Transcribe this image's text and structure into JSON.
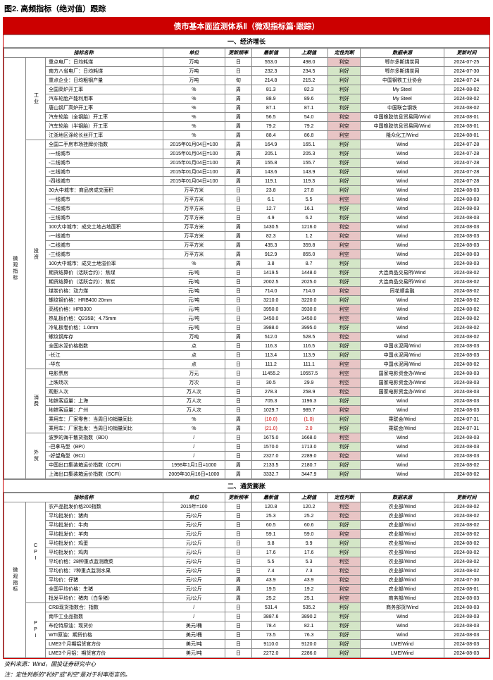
{
  "figTitle": "图2. 高频指标（绝对值）跟踪",
  "mainTitle": "债市基本面监测体系Ⅱ（微观指标篇·跟踪）",
  "s1": "一、经济增长",
  "s2": "二、通货膨胀",
  "hdr": {
    "name": "指标名称",
    "unit": "单位",
    "freq": "更新频率",
    "v1": "最新值",
    "v2": "上期值",
    "judge": "定性判断",
    "src": "数据来源",
    "date": "更新时间"
  },
  "footnote1": "资料来源：Wind，国投证券研究中心",
  "footnote2": "注：定性判断的\"利好\"或\"利空\"是对于利率而言的。",
  "catMicro": "微观指标",
  "grp1": [
    {
      "cat": "工业",
      "rows": [
        {
          "n": "重点电厂：日均耗煤",
          "u": "万吨",
          "f": "日",
          "v1": "553.0",
          "v2": "498.0",
          "j": "利空",
          "jc": "lk2",
          "s": "鄂尔多斯煤炭网",
          "d": "2024-07-25"
        },
        {
          "n": "南方八省电厂：日均耗煤",
          "u": "万吨",
          "f": "日",
          "v1": "232.3",
          "v2": "234.5",
          "j": "利好",
          "jc": "lk",
          "s": "鄂尔多斯煤炭网",
          "d": "2024-07-30"
        },
        {
          "n": "重点企业：日均粗钢产量",
          "u": "万吨",
          "f": "旬",
          "v1": "214.8",
          "v2": "215.2",
          "j": "利好",
          "jc": "lk",
          "s": "中国钢铁工业协会",
          "d": "2024-07-24"
        },
        {
          "n": "全国高炉开工率",
          "u": "%",
          "f": "周",
          "v1": "81.3",
          "v2": "82.3",
          "j": "利好",
          "jc": "lk",
          "s": "My Steel",
          "d": "2024-08-02"
        },
        {
          "n": "汽车轮胎产能利用率",
          "u": "%",
          "f": "周",
          "v1": "88.9",
          "v2": "89.6",
          "j": "利好",
          "jc": "lk",
          "s": "My Steel",
          "d": "2024-08-02"
        },
        {
          "n": "唐山钢厂高炉开工率",
          "u": "%",
          "f": "周",
          "v1": "87.1",
          "v2": "87.1",
          "j": "利好",
          "jc": "lk",
          "s": "中国联合钢铁",
          "d": "2024-08-02"
        },
        {
          "n": "汽车轮胎（全钢胎）开工率",
          "u": "%",
          "f": "周",
          "v1": "56.5",
          "v2": "54.0",
          "j": "利空",
          "jc": "lk2",
          "s": "中国橡胶信息贸易网/Wind",
          "d": "2024-08-01"
        },
        {
          "n": "汽车轮胎（半钢胎）开工率",
          "u": "%",
          "f": "周",
          "v1": "79.2",
          "v2": "79.2",
          "j": "利空",
          "jc": "lk2",
          "s": "中国橡胶信息贸易网/Wind",
          "d": "2024-08-01"
        },
        {
          "n": "江浙地区涤纶长丝开工率",
          "u": "%",
          "f": "周",
          "v1": "88.4",
          "v2": "86.8",
          "j": "利空",
          "jc": "lk2",
          "s": "隆众化工/Wind",
          "d": "2024-08-01"
        }
      ]
    },
    {
      "cat": "投资",
      "rows": [
        {
          "n": "全国二手房市场挂牌价指数",
          "u": "2015年01月04日=100",
          "f": "周",
          "v1": "164.9",
          "v2": "165.1",
          "j": "利好",
          "jc": "lk",
          "s": "Wind",
          "d": "2024-07-28"
        },
        {
          "n": "  ◦一线城市",
          "u": "2015年01月04日=100",
          "f": "周",
          "v1": "205.1",
          "v2": "205.3",
          "j": "利好",
          "jc": "lk",
          "s": "Wind",
          "d": "2024-07-28"
        },
        {
          "n": "  ◦二线城市",
          "u": "2015年01月04日=100",
          "f": "周",
          "v1": "155.8",
          "v2": "155.7",
          "j": "利好",
          "jc": "lk",
          "s": "Wind",
          "d": "2024-07-28"
        },
        {
          "n": "  ◦三线城市",
          "u": "2015年01月04日=100",
          "f": "周",
          "v1": "143.6",
          "v2": "143.9",
          "j": "利好",
          "jc": "lk",
          "s": "Wind",
          "d": "2024-07-28"
        },
        {
          "n": "  ◦四线城市",
          "u": "2015年01月04日=100",
          "f": "周",
          "v1": "119.1",
          "v2": "119.3",
          "j": "利好",
          "jc": "lk",
          "s": "Wind",
          "d": "2024-07-28"
        },
        {
          "n": "30大中城市：商品房成交面积",
          "u": "万平方米",
          "f": "日",
          "v1": "23.8",
          "v2": "27.8",
          "j": "利好",
          "jc": "lk",
          "s": "Wind",
          "d": "2024-08-03"
        },
        {
          "n": "  ◦一线城市",
          "u": "万平方米",
          "f": "日",
          "v1": "6.1",
          "v2": "5.5",
          "j": "利空",
          "jc": "lk2",
          "s": "Wind",
          "d": "2024-08-03"
        },
        {
          "n": "  ◦二线城市",
          "u": "万平方米",
          "f": "日",
          "v1": "12.7",
          "v2": "16.1",
          "j": "利好",
          "jc": "lk",
          "s": "Wind",
          "d": "2024-08-03"
        },
        {
          "n": "  ◦三线城市",
          "u": "万平方米",
          "f": "日",
          "v1": "4.9",
          "v2": "6.2",
          "j": "利好",
          "jc": "lk",
          "s": "Wind",
          "d": "2024-08-03"
        },
        {
          "n": "100大中城市：成交土地占地面积",
          "u": "万平方米",
          "f": "周",
          "v1": "1430.5",
          "v2": "1216.0",
          "j": "利空",
          "jc": "lk2",
          "s": "Wind",
          "d": "2024-08-03"
        },
        {
          "n": "  ◦一线城市",
          "u": "万平方米",
          "f": "周",
          "v1": "82.3",
          "v2": "1.2",
          "j": "利空",
          "jc": "lk2",
          "s": "Wind",
          "d": "2024-08-03"
        },
        {
          "n": "  ◦二线城市",
          "u": "万平方米",
          "f": "周",
          "v1": "435.3",
          "v2": "359.8",
          "j": "利空",
          "jc": "lk2",
          "s": "Wind",
          "d": "2024-08-03"
        },
        {
          "n": "  ◦三线城市",
          "u": "万平方米",
          "f": "周",
          "v1": "912.9",
          "v2": "855.0",
          "j": "利空",
          "jc": "lk2",
          "s": "Wind",
          "d": "2024-08-03"
        },
        {
          "n": "100大中城市：成交土地溢价率",
          "u": "%",
          "f": "周",
          "v1": "3.8",
          "v2": "8.7",
          "j": "利好",
          "jc": "lk",
          "s": "Wind",
          "d": "2024-08-03"
        },
        {
          "n": "期货结算价（活跃合约）：焦煤",
          "u": "元/吨",
          "f": "日",
          "v1": "1419.5",
          "v2": "1448.0",
          "j": "利好",
          "jc": "lk",
          "s": "大连商品交易所/Wind",
          "d": "2024-08-02"
        },
        {
          "n": "期货结算价（活跃合约）：焦炭",
          "u": "元/吨",
          "f": "日",
          "v1": "2002.5",
          "v2": "2025.0",
          "j": "利好",
          "jc": "lk",
          "s": "大连商品交易所/Wind",
          "d": "2024-08-02"
        },
        {
          "n": "煤炭价格：动力煤",
          "u": "元/吨",
          "f": "日",
          "v1": "714.0",
          "v2": "714.0",
          "j": "利空",
          "jc": "lk2",
          "s": "同花顺金融",
          "d": "2024-08-02"
        },
        {
          "n": "螺纹钢价格：HRB400 20mm",
          "u": "元/吨",
          "f": "日",
          "v1": "3210.0",
          "v2": "3220.0",
          "j": "利好",
          "jc": "lk",
          "s": "Wind",
          "d": "2024-08-02"
        },
        {
          "n": "高线价格：HPB300",
          "u": "元/吨",
          "f": "日",
          "v1": "3950.0",
          "v2": "3930.0",
          "j": "利空",
          "jc": "lk2",
          "s": "Wind",
          "d": "2024-08-02"
        },
        {
          "n": "热轧板价格：Q235B：4.75mm",
          "u": "元/吨",
          "f": "日",
          "v1": "3450.0",
          "v2": "3450.0",
          "j": "利空",
          "jc": "lk2",
          "s": "Wind",
          "d": "2024-08-02"
        },
        {
          "n": "冷轧板卷价格：1.0mm",
          "u": "元/吨",
          "f": "日",
          "v1": "3988.0",
          "v2": "3995.0",
          "j": "利好",
          "jc": "lk",
          "s": "Wind",
          "d": "2024-08-02"
        },
        {
          "n": "螺纹钢库存",
          "u": "万吨",
          "f": "周",
          "v1": "512.0",
          "v2": "528.5",
          "j": "利空",
          "jc": "lk2",
          "s": "Wind",
          "d": "2024-08-02"
        },
        {
          "n": "全国水泥价格指数",
          "u": "点",
          "f": "日",
          "v1": "116.3",
          "v2": "116.5",
          "j": "利好",
          "jc": "lk",
          "s": "中国水泥网/Wind",
          "d": "2024-08-03"
        },
        {
          "n": "  ◦长江",
          "u": "点",
          "f": "日",
          "v1": "113.4",
          "v2": "113.9",
          "j": "利好",
          "jc": "lk",
          "s": "中国水泥网/Wind",
          "d": "2024-08-03"
        },
        {
          "n": "  ◦华东",
          "u": "点",
          "f": "日",
          "v1": "111.2",
          "v2": "111.1",
          "j": "利空",
          "jc": "lk2",
          "s": "中国水泥网/Wind",
          "d": "2024-08-02"
        }
      ]
    },
    {
      "cat": "消费",
      "rows": [
        {
          "n": "电影票房",
          "u": "万元",
          "f": "日",
          "v1": "11455.2",
          "v2": "10557.5",
          "j": "利空",
          "jc": "lk2",
          "s": "国家电影资金办/Wind",
          "d": "2024-08-03"
        },
        {
          "n": "上映场次",
          "u": "万次",
          "f": "日",
          "v1": "30.5",
          "v2": "29.9",
          "j": "利空",
          "jc": "lk2",
          "s": "国家电影资金办/Wind",
          "d": "2024-08-03"
        },
        {
          "n": "观影人次",
          "u": "万人次",
          "f": "日",
          "v1": "278.3",
          "v2": "258.9",
          "j": "利空",
          "jc": "lk2",
          "s": "国家电影资金办/Wind",
          "d": "2024-08-03"
        },
        {
          "n": "地铁客运量：上海",
          "u": "万人次",
          "f": "日",
          "v1": "705.3",
          "v2": "1196.3",
          "j": "利好",
          "jc": "lk",
          "s": "Wind",
          "d": "2024-08-03"
        },
        {
          "n": "地铁客运量：广州",
          "u": "万人次",
          "f": "日",
          "v1": "1029.7",
          "v2": "989.7",
          "j": "利空",
          "jc": "lk2",
          "s": "Wind",
          "d": "2024-08-03"
        },
        {
          "n": "乘用车：厂家零售：当周日均销量同比",
          "u": "%",
          "f": "周",
          "v1": "(10.0)",
          "v2": "(1.0)",
          "j": "利好",
          "jc": "lk",
          "s": "乘联会/Wind",
          "d": "2024-07-31",
          "red": true
        },
        {
          "n": "乘用车：厂家批发：当周日均销量同比",
          "u": "%",
          "f": "周",
          "v1": "(21.0)",
          "v2": "2.0",
          "j": "利好",
          "jc": "lk",
          "s": "乘联会/Wind",
          "d": "2024-07-31",
          "red": true
        }
      ]
    },
    {
      "cat": "外贸",
      "rows": [
        {
          "n": "波罗的海干散货指数（BDI）",
          "u": "/",
          "f": "日",
          "v1": "1675.0",
          "v2": "1668.0",
          "j": "利空",
          "jc": "lk2",
          "s": "Wind",
          "d": "2024-08-03"
        },
        {
          "n": "  ◦巴拿马型（BPI）",
          "u": "/",
          "f": "日",
          "v1": "1570.0",
          "v2": "1713.0",
          "j": "利好",
          "jc": "lk",
          "s": "Wind",
          "d": "2024-08-03"
        },
        {
          "n": "  ◦好望角型（BCI）",
          "u": "/",
          "f": "日",
          "v1": "2327.0",
          "v2": "2289.0",
          "j": "利空",
          "jc": "lk2",
          "s": "Wind",
          "d": "2024-08-03"
        },
        {
          "n": "中国出口集装箱运价指数（CCFI）",
          "u": "1998年1月1日=1000",
          "f": "周",
          "v1": "2133.5",
          "v2": "2180.7",
          "j": "利好",
          "jc": "lk",
          "s": "Wind",
          "d": "2024-08-02"
        },
        {
          "n": "上海出口集装箱运价指数（SCFI）",
          "u": "2009年10月16日=1000",
          "f": "周",
          "v1": "3332.7",
          "v2": "3447.9",
          "j": "利好",
          "jc": "lk",
          "s": "Wind",
          "d": "2024-08-02"
        }
      ]
    }
  ],
  "grp2": [
    {
      "cat": "CPI",
      "rows": [
        {
          "n": "农产品批发价格200指数",
          "u": "2015年=100",
          "f": "日",
          "v1": "120.8",
          "v2": "120.2",
          "j": "利空",
          "jc": "lk2",
          "s": "农业部/Wind",
          "d": "2024-08-02"
        },
        {
          "n": "平均批发价：猪肉",
          "u": "元/公斤",
          "f": "日",
          "v1": "25.3",
          "v2": "25.2",
          "j": "利空",
          "jc": "lk2",
          "s": "农业部/Wind",
          "d": "2024-08-02"
        },
        {
          "n": "平均批发价：牛肉",
          "u": "元/公斤",
          "f": "日",
          "v1": "60.5",
          "v2": "60.6",
          "j": "利好",
          "jc": "lk",
          "s": "农业部/Wind",
          "d": "2024-08-02"
        },
        {
          "n": "平均批发价：羊肉",
          "u": "元/公斤",
          "f": "日",
          "v1": "59.1",
          "v2": "59.0",
          "j": "利空",
          "jc": "lk2",
          "s": "农业部/Wind",
          "d": "2024-08-02"
        },
        {
          "n": "平均批发价：鸡蛋",
          "u": "元/公斤",
          "f": "日",
          "v1": "9.8",
          "v2": "9.9",
          "j": "利好",
          "jc": "lk",
          "s": "农业部/Wind",
          "d": "2024-08-02"
        },
        {
          "n": "平均批发价：鸡肉",
          "u": "元/公斤",
          "f": "日",
          "v1": "17.6",
          "v2": "17.6",
          "j": "利好",
          "jc": "lk",
          "s": "农业部/Wind",
          "d": "2024-08-02"
        },
        {
          "n": "平均价格：28种重点监测蔬菜",
          "u": "元/公斤",
          "f": "日",
          "v1": "5.5",
          "v2": "5.3",
          "j": "利空",
          "jc": "lk2",
          "s": "农业部/Wind",
          "d": "2024-08-02"
        },
        {
          "n": "平均价格：7种重点监测水果",
          "u": "元/公斤",
          "f": "日",
          "v1": "7.4",
          "v2": "7.3",
          "j": "利空",
          "jc": "lk2",
          "s": "农业部/Wind",
          "d": "2024-08-02"
        },
        {
          "n": "平均价：仔猪",
          "u": "元/公斤",
          "f": "周",
          "v1": "43.9",
          "v2": "43.9",
          "j": "利空",
          "jc": "lk2",
          "s": "农业部/Wind",
          "d": "2024-07-30"
        },
        {
          "n": "全国平均价格：生猪",
          "u": "元/公斤",
          "f": "周",
          "v1": "19.5",
          "v2": "19.2",
          "j": "利空",
          "jc": "lk2",
          "s": "农业部/Wind",
          "d": "2024-08-01"
        },
        {
          "n": "批发平均价：猪肉（白条猪）",
          "u": "元/公斤",
          "f": "周",
          "v1": "25.2",
          "v2": "25.1",
          "j": "利空",
          "jc": "lk2",
          "s": "商务部/Wind",
          "d": "2024-08-03"
        }
      ]
    },
    {
      "cat": "PPI",
      "rows": [
        {
          "n": "CRB现货指数合：指数",
          "u": "/",
          "f": "日",
          "v1": "531.4",
          "v2": "535.2",
          "j": "利好",
          "jc": "lk",
          "s": "商务部货/Wind",
          "d": "2024-08-03"
        },
        {
          "n": "南华工业品指数",
          "u": "/",
          "f": "日",
          "v1": "3887.6",
          "v2": "3890.2",
          "j": "利好",
          "jc": "lk",
          "s": "Wind",
          "d": "2024-08-03"
        },
        {
          "n": "布伦特原油：现货价",
          "u": "美元/桶",
          "f": "日",
          "v1": "78.4",
          "v2": "82.1",
          "j": "利好",
          "jc": "lk",
          "s": "Wind",
          "d": "2024-08-03"
        },
        {
          "n": "WTI原油：期货价格",
          "u": "美元/桶",
          "f": "日",
          "v1": "73.5",
          "v2": "76.3",
          "j": "利好",
          "jc": "lk",
          "s": "Wind",
          "d": "2024-08-03"
        },
        {
          "n": "LME3个月期铝货官方价",
          "u": "美元/吨",
          "f": "日",
          "v1": "9110.0",
          "v2": "9120.0",
          "j": "利好",
          "jc": "lk",
          "s": "LME/Wind",
          "d": "2024-08-03"
        },
        {
          "n": "LME3个月铝：期货官方价",
          "u": "美元/吨",
          "f": "日",
          "v1": "2272.0",
          "v2": "2286.0",
          "j": "利好",
          "jc": "lk",
          "s": "LME/Wind",
          "d": "2024-08-03"
        }
      ]
    }
  ]
}
